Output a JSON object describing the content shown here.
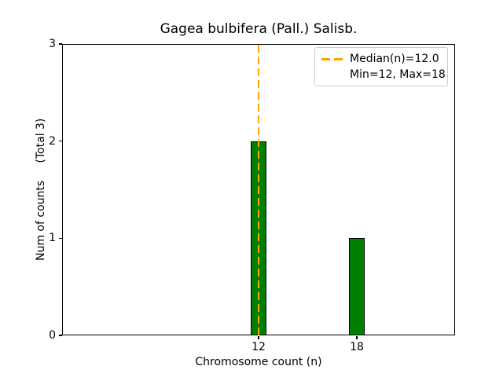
{
  "chart_data": {
    "type": "bar",
    "title": "Gagea bulbifera (Pall.) Salisb.",
    "xlabel": "Chromosome count (n)",
    "ylabel": "Num of counts     (Total 3)",
    "categories": [
      12,
      18
    ],
    "values": [
      2,
      1
    ],
    "bar_width": 1,
    "bar_color": "#008000",
    "bar_edge_color": "#000000",
    "xlim": [
      0,
      24
    ],
    "ylim": [
      0,
      3
    ],
    "xticks": [
      12,
      18
    ],
    "yticks": [
      0,
      1,
      2,
      3
    ],
    "grid": false,
    "median_line": {
      "x": 12.0,
      "color": "#FFA500",
      "style": "dashed"
    },
    "legend": {
      "position": "upper right",
      "items": [
        {
          "label": "Median(n)=12.0",
          "swatch": "orange-dashed-line"
        },
        {
          "label": "Min=12, Max=18",
          "swatch": "none"
        }
      ]
    }
  }
}
